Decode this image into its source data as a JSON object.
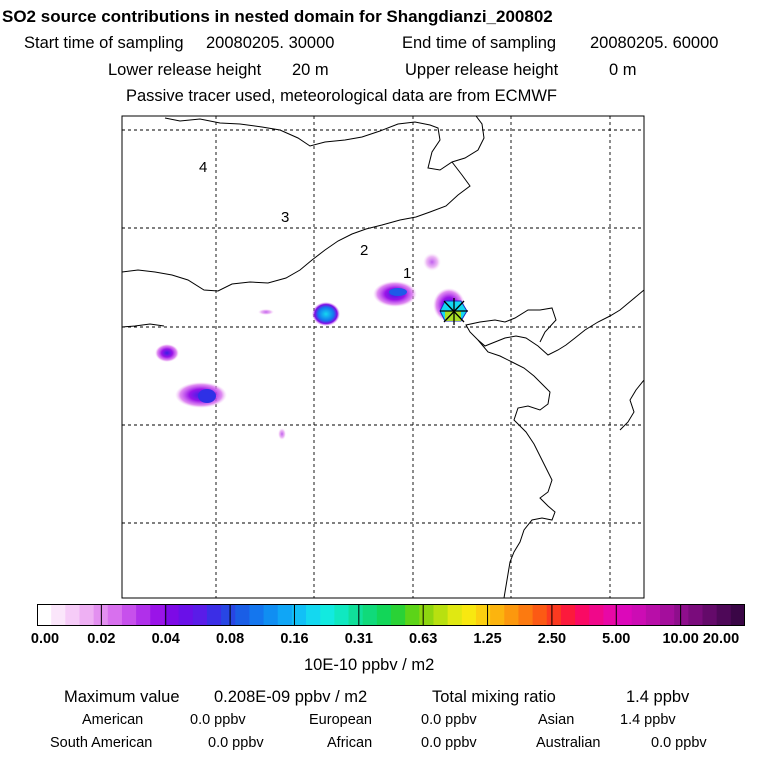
{
  "title": "SO2 source contributions in nested domain for Shangdianzi_200802",
  "start_label": "Start time of sampling",
  "start_value": "20080205. 30000",
  "end_label": "End time of sampling",
  "end_value": "20080205. 60000",
  "lower_label": "Lower release height",
  "lower_value": "20 m",
  "upper_label": "Upper release height",
  "upper_value": "0 m",
  "tracer_note": "Passive tracer used, meteorological data are from ECMWF",
  "map": {
    "region_labels": [
      "4",
      "3",
      "2",
      "1"
    ],
    "station_marker": "receptor-star-icon"
  },
  "colorbar": {
    "labels": [
      "0.00",
      "0.02",
      "0.04",
      "0.08",
      "0.16",
      "0.31",
      "0.63",
      "1.25",
      "2.50",
      "5.00",
      "10.00",
      "20.00"
    ],
    "unit": "10E-10 ppbv / m2",
    "colors": [
      "#ffffff",
      "#fbe6fb",
      "#f6ccf8",
      "#eeb0f3",
      "#e390f0",
      "#d870ee",
      "#c750ec",
      "#b030ea",
      "#9a14e8",
      "#7d0ae6",
      "#6a10e8",
      "#5a1ce8",
      "#3b2ee6",
      "#2846e4",
      "#1a5ee6",
      "#1476ee",
      "#108ef2",
      "#10a6f6",
      "#12c0f6",
      "#14d8f0",
      "#12eae0",
      "#10e8c0",
      "#10e09a",
      "#10da7a",
      "#12d658",
      "#2ad236",
      "#5cd418",
      "#8ed610",
      "#b8e010",
      "#e0e812",
      "#f8e810",
      "#fcd010",
      "#fcb40e",
      "#fc980e",
      "#fc7a10",
      "#fc5a14",
      "#fc3a20",
      "#fc1a3c",
      "#fa0a64",
      "#f0088a",
      "#e808a6",
      "#dc08ba",
      "#cc0cb4",
      "#b80ea8",
      "#a40e9c",
      "#8e0e8c",
      "#7a0c7c",
      "#640a6a",
      "#4e0858",
      "#3a0646"
    ]
  },
  "stats": {
    "max_label": "Maximum value",
    "max_value": "0.208E-09 ppbv / m2",
    "total_label": "Total mixing ratio",
    "total_value": "1.4 ppbv"
  },
  "contributions": [
    {
      "region": "American",
      "value": "0.0 ppbv"
    },
    {
      "region": "European",
      "value": "0.0 ppbv"
    },
    {
      "region": "Asian",
      "value": "1.4 ppbv"
    },
    {
      "region": "South American",
      "value": "0.0 ppbv"
    },
    {
      "region": "African",
      "value": "0.0 ppbv"
    },
    {
      "region": "Australian",
      "value": "0.0 ppbv"
    }
  ]
}
